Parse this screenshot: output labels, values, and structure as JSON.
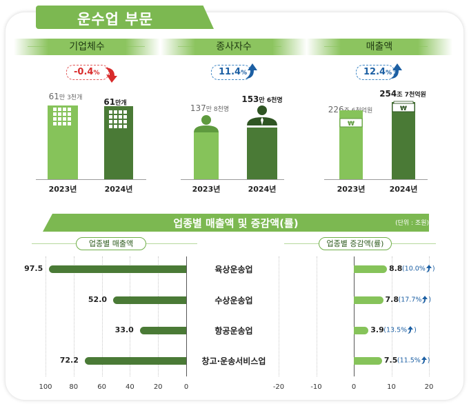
{
  "header": {
    "title": "운수업 부문"
  },
  "kpis": [
    {
      "label": "기업체수",
      "change": "-0.4",
      "change_unit": "%",
      "direction": "down",
      "val_2023_num": "61",
      "val_2023_rest": "만 3천개",
      "val_2024_num": "61",
      "val_2024_rest": "만개",
      "year_2023": "2023년",
      "year_2024": "2024년",
      "icon": "building-icon"
    },
    {
      "label": "종사자수",
      "change": "11.4",
      "change_unit": "%",
      "direction": "up",
      "val_2023_num": "137",
      "val_2023_rest": "만 8천명",
      "val_2024_num": "153",
      "val_2024_rest": "만 6천명",
      "year_2023": "2023년",
      "year_2024": "2024년",
      "icon": "person-icon"
    },
    {
      "label": "매출액",
      "change": "12.4",
      "change_unit": "%",
      "direction": "up",
      "val_2023_num": "226",
      "val_2023_rest": "조 6천억원",
      "val_2024_num": "254",
      "val_2024_rest": "조 7천억원",
      "year_2023": "2023년",
      "year_2024": "2024년",
      "icon": "won-icon"
    }
  ],
  "section": {
    "title": "업종별 매출액 및 증감액(률)",
    "unit": "(단위 : 조원)",
    "left_label": "업종별 매출액",
    "right_label": "업종별 증감액(률)"
  },
  "colors": {
    "light_green": "#86c35a",
    "dark_green": "#4a7a36",
    "negative": "#d82b2b",
    "positive": "#1c5fa3"
  },
  "chart_data": [
    {
      "type": "bar",
      "title": "기업체수",
      "categories": [
        "2023년",
        "2024년"
      ],
      "values": [
        61.3,
        61.0
      ],
      "unit": "만개",
      "change_pct": -0.4
    },
    {
      "type": "bar",
      "title": "종사자수",
      "categories": [
        "2023년",
        "2024년"
      ],
      "values": [
        137.8,
        153.6
      ],
      "unit": "만명",
      "change_pct": 11.4
    },
    {
      "type": "bar",
      "title": "매출액",
      "categories": [
        "2023년",
        "2024년"
      ],
      "values": [
        226.6,
        254.7
      ],
      "unit": "조원",
      "change_pct": 12.4
    },
    {
      "type": "bar",
      "orientation": "horizontal",
      "title": "업종별 매출액",
      "categories": [
        "육상운송업",
        "수상운송업",
        "항공운송업",
        "창고·운송서비스업"
      ],
      "values": [
        97.5,
        52.0,
        33.0,
        72.2
      ],
      "value_labels": [
        "97.5",
        "52.0",
        "33.0",
        "72.2"
      ],
      "xlim": [
        100,
        0
      ],
      "ticks": [
        "100",
        "80",
        "60",
        "40",
        "20",
        "0"
      ]
    },
    {
      "type": "bar",
      "orientation": "horizontal",
      "title": "업종별 증감액(률)",
      "categories": [
        "육상운송업",
        "수상운송업",
        "항공운송업",
        "창고·운송서비스업"
      ],
      "values": [
        8.8,
        7.8,
        3.9,
        7.5
      ],
      "value_labels": [
        "8.8",
        "7.8",
        "3.9",
        "7.5"
      ],
      "rates": [
        "(10.0%",
        "(17.7%",
        "(13.5%",
        "(11.5%"
      ],
      "rate_values": [
        10.0,
        17.7,
        13.5,
        11.5
      ],
      "xlim": [
        -20,
        20
      ],
      "ticks": [
        "-20",
        "-10",
        "0",
        "10",
        "20"
      ]
    }
  ]
}
